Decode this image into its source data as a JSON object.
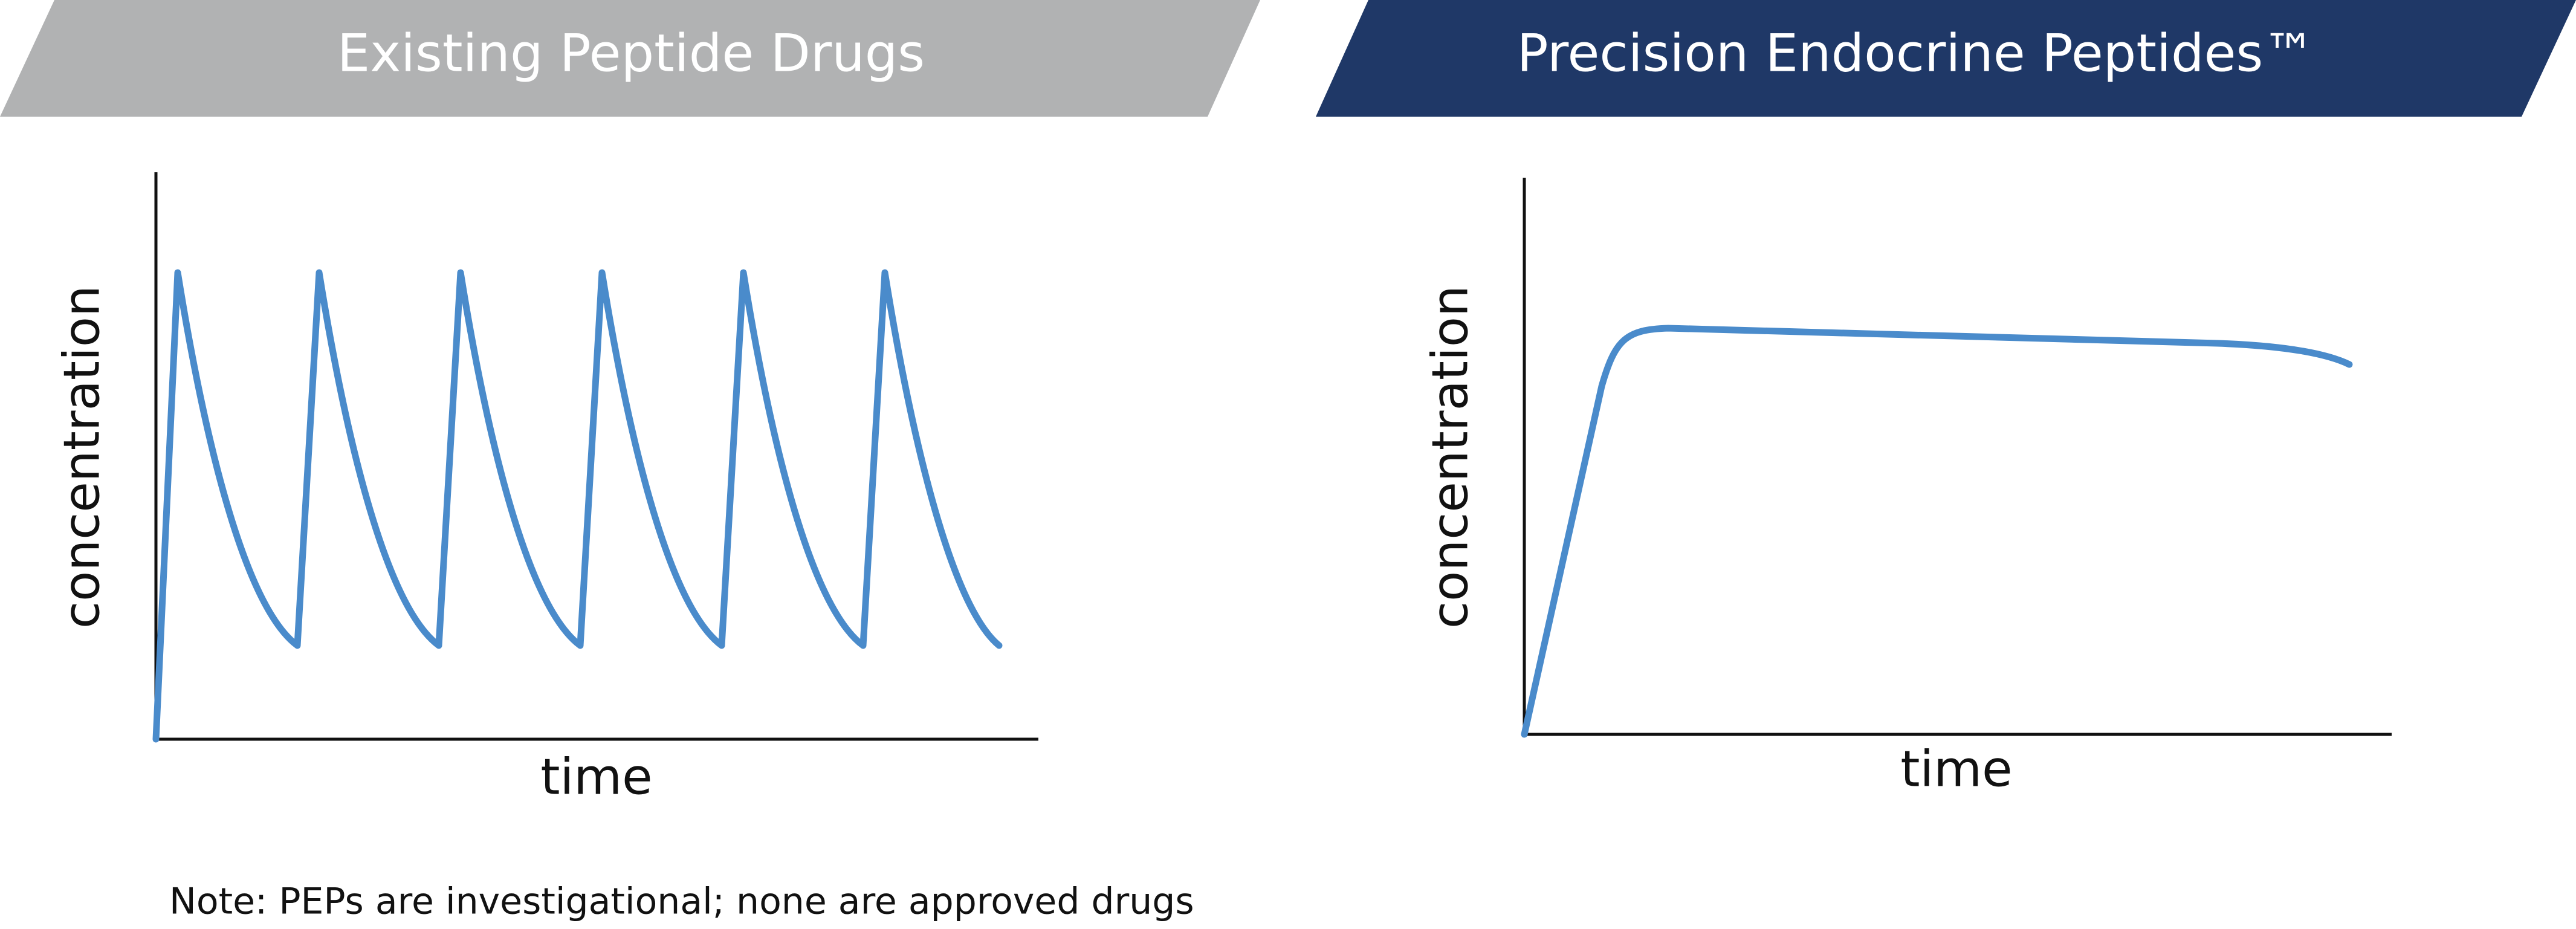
{
  "panels": [
    {
      "title": "Existing Peptide Drugs",
      "y_label": "concentration",
      "x_label": "time"
    },
    {
      "title": "Precision Endocrine Peptides™",
      "y_label": "concentration",
      "x_label": "time"
    }
  ],
  "note": "Note: PEPs are investigational; none are approved drugs"
}
